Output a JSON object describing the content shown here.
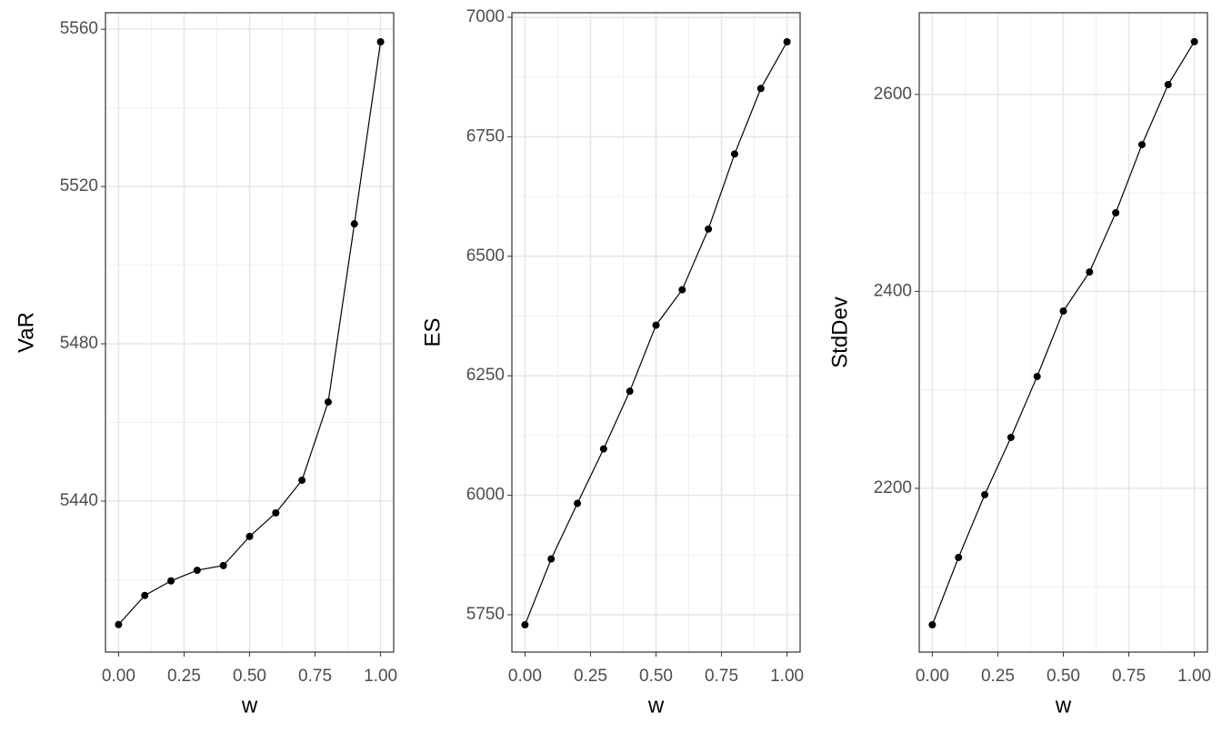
{
  "chart_data": [
    {
      "type": "line",
      "xlabel": "w",
      "ylabel": "VaR",
      "color": "#000000",
      "grid": true,
      "x": [
        0,
        0.1,
        0.2,
        0.3,
        0.4,
        0.5,
        0.6,
        0.7,
        0.8,
        0.9,
        1.0
      ],
      "values": [
        5408.6,
        5416,
        5419.7,
        5422.4,
        5423.6,
        5431,
        5437,
        5445.3,
        5465.2,
        5510.5,
        5556.8
      ],
      "xlim": [
        -0.05,
        1.05
      ],
      "ylim": [
        5401.6,
        5564.2
      ],
      "xticks": [
        {
          "value": 0,
          "label": "0.00"
        },
        {
          "value": 0.25,
          "label": "0.25"
        },
        {
          "value": 0.5,
          "label": "0.50"
        },
        {
          "value": 0.75,
          "label": "0.75"
        },
        {
          "value": 1,
          "label": "1.00"
        }
      ],
      "yticks": [
        5440,
        5480,
        5520,
        5560
      ],
      "minor_xticks": [
        0.125,
        0.375,
        0.625,
        0.875
      ],
      "minor_yticks": [
        5420,
        5460,
        5500,
        5540
      ]
    },
    {
      "type": "line",
      "xlabel": "w",
      "ylabel": "ES",
      "color": "#000000",
      "grid": true,
      "x": [
        0,
        0.1,
        0.2,
        0.3,
        0.4,
        0.5,
        0.6,
        0.7,
        0.8,
        0.9,
        1.0
      ],
      "values": [
        5729,
        5866.8,
        5983,
        6097,
        6217.7,
        6355.8,
        6430,
        6557,
        6714,
        6851,
        6948.6
      ],
      "xlim": [
        -0.05,
        1.05
      ],
      "ylim": [
        5672,
        7009.5
      ],
      "xticks": [
        {
          "value": 0,
          "label": "0.00"
        },
        {
          "value": 0.25,
          "label": "0.25"
        },
        {
          "value": 0.5,
          "label": "0.50"
        },
        {
          "value": 0.75,
          "label": "0.75"
        },
        {
          "value": 1,
          "label": "1.00"
        }
      ],
      "yticks": [
        5750,
        6000,
        6250,
        6500,
        6750,
        7000
      ],
      "minor_xticks": [
        0.125,
        0.375,
        0.625,
        0.875
      ],
      "minor_yticks": [
        5875,
        6125,
        6375,
        6625,
        6875
      ]
    },
    {
      "type": "line",
      "xlabel": "w",
      "ylabel": "StdDev",
      "color": "#000000",
      "grid": true,
      "x": [
        0,
        0.1,
        0.2,
        0.3,
        0.4,
        0.5,
        0.6,
        0.7,
        0.8,
        0.9,
        1.0
      ],
      "values": [
        2061.4,
        2129.8,
        2193.5,
        2251.7,
        2313.6,
        2380,
        2419.7,
        2479.8,
        2549,
        2610,
        2653.6
      ],
      "xlim": [
        -0.05,
        1.05
      ],
      "ylim": [
        2033.7,
        2683
      ],
      "xticks": [
        {
          "value": 0,
          "label": "0.00"
        },
        {
          "value": 0.25,
          "label": "0.25"
        },
        {
          "value": 0.5,
          "label": "0.50"
        },
        {
          "value": 0.75,
          "label": "0.75"
        },
        {
          "value": 1,
          "label": "1.00"
        }
      ],
      "yticks": [
        2200,
        2400,
        2600
      ],
      "minor_xticks": [
        0.125,
        0.375,
        0.625,
        0.875
      ],
      "minor_yticks": [
        2100,
        2300,
        2500
      ]
    }
  ]
}
